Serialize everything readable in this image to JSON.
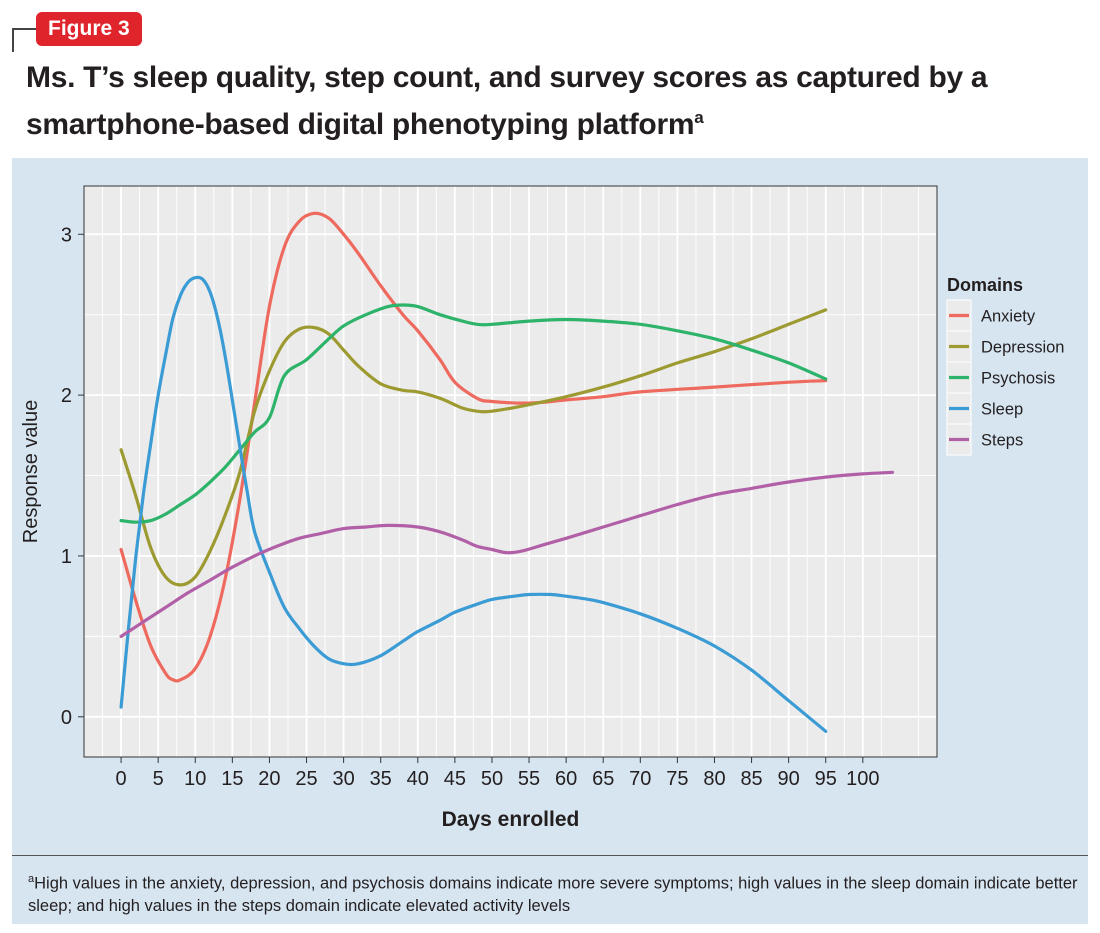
{
  "figure_label": "Figure 3",
  "title": "Ms. T’s sleep quality, step count, and survey scores as captured by a smartphone-based digital phenotyping platform",
  "title_superscript": "a",
  "footnote": {
    "marker": "a",
    "text": "High values in the anxiety, depression, and psychosis domains indicate more severe symptoms; high values in the sleep domain indicate better sleep; and high values in the steps domain indicate elevated activity levels"
  },
  "colors": {
    "panel_background": "#d7e5f1",
    "plot_background": "#ebebeb",
    "grid": "#ffffff",
    "badge": "#e0242b"
  },
  "chart_data": {
    "type": "line",
    "title": "",
    "xlabel": "Days enrolled",
    "ylabel": "Response value",
    "xlim": [
      -5,
      110
    ],
    "ylim": [
      -0.25,
      3.3
    ],
    "xticks": [
      0,
      5,
      10,
      15,
      20,
      25,
      30,
      35,
      40,
      45,
      50,
      55,
      60,
      65,
      70,
      75,
      80,
      85,
      90,
      95,
      100
    ],
    "yticks": [
      0,
      1,
      2,
      3
    ],
    "grid": true,
    "legend": {
      "title": "Domains",
      "position": "right"
    },
    "series": [
      {
        "name": "Anxiety",
        "color": "#ee6a5e",
        "points": [
          [
            0,
            1.04
          ],
          [
            2,
            0.72
          ],
          [
            4,
            0.44
          ],
          [
            6,
            0.27
          ],
          [
            7,
            0.23
          ],
          [
            8,
            0.23
          ],
          [
            10,
            0.3
          ],
          [
            12,
            0.5
          ],
          [
            14,
            0.85
          ],
          [
            16,
            1.35
          ],
          [
            18,
            1.95
          ],
          [
            20,
            2.55
          ],
          [
            22,
            2.92
          ],
          [
            24,
            3.08
          ],
          [
            26,
            3.13
          ],
          [
            28,
            3.1
          ],
          [
            30,
            3.0
          ],
          [
            32,
            2.88
          ],
          [
            35,
            2.68
          ],
          [
            38,
            2.5
          ],
          [
            40,
            2.4
          ],
          [
            43,
            2.22
          ],
          [
            45,
            2.08
          ],
          [
            48,
            1.98
          ],
          [
            50,
            1.96
          ],
          [
            55,
            1.95
          ],
          [
            60,
            1.97
          ],
          [
            65,
            1.99
          ],
          [
            70,
            2.02
          ],
          [
            80,
            2.05
          ],
          [
            90,
            2.08
          ],
          [
            95,
            2.09
          ]
        ]
      },
      {
        "name": "Depression",
        "color": "#9c9a30",
        "points": [
          [
            0,
            1.66
          ],
          [
            2,
            1.37
          ],
          [
            4,
            1.05
          ],
          [
            6,
            0.87
          ],
          [
            8,
            0.82
          ],
          [
            10,
            0.87
          ],
          [
            12,
            1.03
          ],
          [
            14,
            1.25
          ],
          [
            16,
            1.52
          ],
          [
            18,
            1.9
          ],
          [
            20,
            2.15
          ],
          [
            22,
            2.33
          ],
          [
            24,
            2.41
          ],
          [
            26,
            2.42
          ],
          [
            28,
            2.38
          ],
          [
            30,
            2.28
          ],
          [
            32,
            2.18
          ],
          [
            35,
            2.07
          ],
          [
            38,
            2.03
          ],
          [
            40,
            2.02
          ],
          [
            43,
            1.98
          ],
          [
            46,
            1.92
          ],
          [
            48,
            1.9
          ],
          [
            50,
            1.9
          ],
          [
            55,
            1.94
          ],
          [
            60,
            1.99
          ],
          [
            65,
            2.05
          ],
          [
            70,
            2.12
          ],
          [
            75,
            2.2
          ],
          [
            80,
            2.27
          ],
          [
            85,
            2.35
          ],
          [
            90,
            2.44
          ],
          [
            95,
            2.53
          ]
        ]
      },
      {
        "name": "Psychosis",
        "color": "#2db36a",
        "points": [
          [
            0,
            1.22
          ],
          [
            2,
            1.21
          ],
          [
            4,
            1.22
          ],
          [
            6,
            1.26
          ],
          [
            8,
            1.32
          ],
          [
            10,
            1.38
          ],
          [
            12,
            1.46
          ],
          [
            14,
            1.55
          ],
          [
            16,
            1.66
          ],
          [
            18,
            1.77
          ],
          [
            20,
            1.86
          ],
          [
            22,
            2.12
          ],
          [
            25,
            2.22
          ],
          [
            28,
            2.35
          ],
          [
            30,
            2.43
          ],
          [
            33,
            2.5
          ],
          [
            36,
            2.55
          ],
          [
            38,
            2.56
          ],
          [
            40,
            2.55
          ],
          [
            43,
            2.5
          ],
          [
            46,
            2.46
          ],
          [
            48,
            2.44
          ],
          [
            50,
            2.44
          ],
          [
            55,
            2.46
          ],
          [
            60,
            2.47
          ],
          [
            65,
            2.46
          ],
          [
            70,
            2.44
          ],
          [
            75,
            2.4
          ],
          [
            80,
            2.35
          ],
          [
            85,
            2.28
          ],
          [
            90,
            2.2
          ],
          [
            95,
            2.1
          ]
        ]
      },
      {
        "name": "Sleep",
        "color": "#3a9bd5",
        "points": [
          [
            0,
            0.06
          ],
          [
            1,
            0.55
          ],
          [
            2,
            1.0
          ],
          [
            3,
            1.38
          ],
          [
            4,
            1.7
          ],
          [
            5,
            2.0
          ],
          [
            6,
            2.25
          ],
          [
            7,
            2.48
          ],
          [
            8,
            2.62
          ],
          [
            9,
            2.7
          ],
          [
            10,
            2.73
          ],
          [
            11,
            2.72
          ],
          [
            12,
            2.64
          ],
          [
            13,
            2.48
          ],
          [
            14,
            2.25
          ],
          [
            15,
            1.97
          ],
          [
            16,
            1.68
          ],
          [
            17,
            1.4
          ],
          [
            18,
            1.15
          ],
          [
            20,
            0.9
          ],
          [
            22,
            0.68
          ],
          [
            24,
            0.55
          ],
          [
            26,
            0.44
          ],
          [
            28,
            0.36
          ],
          [
            30,
            0.33
          ],
          [
            32,
            0.33
          ],
          [
            35,
            0.38
          ],
          [
            38,
            0.47
          ],
          [
            40,
            0.53
          ],
          [
            43,
            0.6
          ],
          [
            45,
            0.65
          ],
          [
            48,
            0.7
          ],
          [
            50,
            0.73
          ],
          [
            53,
            0.75
          ],
          [
            55,
            0.76
          ],
          [
            58,
            0.76
          ],
          [
            60,
            0.75
          ],
          [
            63,
            0.73
          ],
          [
            65,
            0.71
          ],
          [
            70,
            0.64
          ],
          [
            75,
            0.55
          ],
          [
            80,
            0.44
          ],
          [
            85,
            0.29
          ],
          [
            90,
            0.1
          ],
          [
            95,
            -0.09
          ]
        ]
      },
      {
        "name": "Steps",
        "color": "#b160a8",
        "points": [
          [
            0,
            0.5
          ],
          [
            3,
            0.59
          ],
          [
            6,
            0.68
          ],
          [
            9,
            0.77
          ],
          [
            12,
            0.85
          ],
          [
            15,
            0.93
          ],
          [
            18,
            1.0
          ],
          [
            21,
            1.06
          ],
          [
            24,
            1.11
          ],
          [
            27,
            1.14
          ],
          [
            30,
            1.17
          ],
          [
            33,
            1.18
          ],
          [
            36,
            1.19
          ],
          [
            40,
            1.18
          ],
          [
            43,
            1.15
          ],
          [
            46,
            1.1
          ],
          [
            48,
            1.06
          ],
          [
            50,
            1.04
          ],
          [
            52,
            1.02
          ],
          [
            54,
            1.03
          ],
          [
            57,
            1.07
          ],
          [
            60,
            1.11
          ],
          [
            65,
            1.18
          ],
          [
            70,
            1.25
          ],
          [
            75,
            1.32
          ],
          [
            80,
            1.38
          ],
          [
            85,
            1.42
          ],
          [
            90,
            1.46
          ],
          [
            95,
            1.49
          ],
          [
            100,
            1.51
          ],
          [
            104,
            1.52
          ]
        ]
      }
    ]
  }
}
